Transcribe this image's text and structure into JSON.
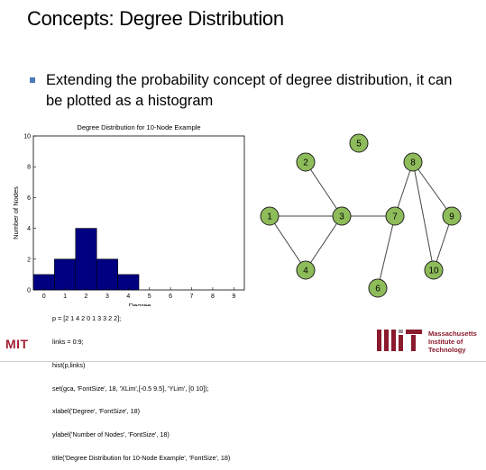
{
  "slide": {
    "title": "Concepts: Degree Distribution",
    "bullet": "Extending the probability concept of degree distribution, it can be plotted as a histogram",
    "code_lines": [
      "p = [2 1 4 2 0 1 3 3 2 2];",
      "links = 0:9;",
      "hist(p,links)",
      "set(gca, 'FontSize', 18, 'XLim',[-0.5 9.5], 'YLim', [0 10]);",
      "xlabel('Degree', 'FontSize', 18)",
      "ylabel('Number of Nodes', 'FontSize', 18)",
      "title('Degree Distribution for 10-Node Example', 'FontSize', 18)"
    ],
    "logo_left": "MIT",
    "logo_right_lines": [
      "Massachusetts",
      "Institute of",
      "Technology"
    ],
    "colors": {
      "bar": "#000080",
      "node_fill": "#8fbc5a",
      "mit_red": "#a31f34"
    }
  },
  "chart_data": {
    "type": "bar",
    "title": "Degree Distribution for 10-Node Example",
    "xlabel": "Degree",
    "ylabel": "Number of Nodes",
    "categories": [
      0,
      1,
      2,
      3,
      4,
      5,
      6,
      7,
      8,
      9
    ],
    "values": [
      1,
      2,
      4,
      2,
      1,
      0,
      0,
      0,
      0,
      0
    ],
    "xlim": [
      -0.5,
      9.5
    ],
    "ylim": [
      0,
      10
    ],
    "xticks": [
      "0",
      "1",
      "2",
      "3",
      "4",
      "5",
      "6",
      "7",
      "8",
      "9"
    ],
    "yticks": [
      "0",
      "2",
      "4",
      "6",
      "8",
      "10"
    ],
    "grid": false
  },
  "graph": {
    "nodes": [
      "1",
      "2",
      "3",
      "4",
      "5",
      "6",
      "7",
      "8",
      "9",
      "10"
    ],
    "edges": [
      [
        "2",
        "3"
      ],
      [
        "1",
        "3"
      ],
      [
        "1",
        "4"
      ],
      [
        "3",
        "4"
      ],
      [
        "3",
        "7"
      ],
      [
        "7",
        "6"
      ],
      [
        "7",
        "8"
      ],
      [
        "8",
        "9"
      ],
      [
        "8",
        "10"
      ],
      [
        "9",
        "10"
      ]
    ]
  }
}
